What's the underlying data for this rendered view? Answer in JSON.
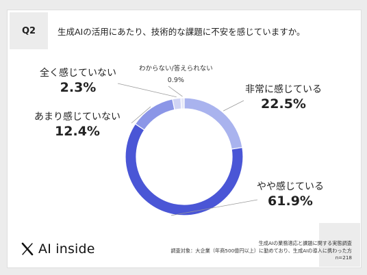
{
  "question_no": "Q2",
  "question_text": "生成AIの活用にあたり、技術的な課題に不安を感じていますか。",
  "logo_text": "AI inside",
  "source": {
    "line1": "生成AIの業務適応と課題に関する実態調査",
    "line2": "調査対象：大企業（年商500億円以上）に勤めており、生成AIの導入に携わった方",
    "line3": "n=218"
  },
  "chart_data": {
    "type": "pie",
    "donut": true,
    "start": "top",
    "direction": "clockwise",
    "categories": [
      "非常に感じている",
      "やや感じている",
      "あまり感じていない",
      "全く感じていない",
      "わからない/答えられない"
    ],
    "values": [
      22.5,
      61.9,
      12.4,
      2.3,
      0.9
    ],
    "value_labels": [
      "22.5%",
      "61.9%",
      "12.4%",
      "2.3%",
      "0.9%"
    ],
    "colors": [
      "#a9b3ee",
      "#4a56d6",
      "#8b96e7",
      "#d0d4f4",
      "#e6e8f8"
    ]
  }
}
